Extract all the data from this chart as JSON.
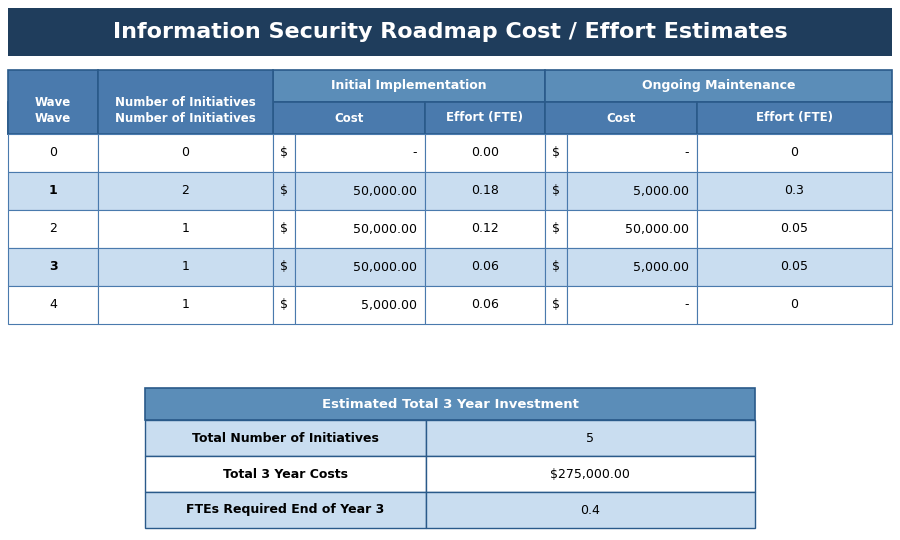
{
  "title": "Information Security Roadmap Cost / Effort Estimates",
  "title_bg": "#1f3d5c",
  "title_color": "#ffffff",
  "subheader_bg": "#5b8db8",
  "col_header_bg": "#4a7aad",
  "col_header_color": "#ffffff",
  "border_color": "#4a7aad",
  "border_dark": "#2a5a8a",
  "row_bg_odd": "#c9ddf0",
  "row_bg_even": "#ffffff",
  "rows": [
    [
      "0",
      "0",
      "$",
      "-",
      "0.00",
      "$",
      "-",
      "0"
    ],
    [
      "1",
      "2",
      "$",
      "50,000.00",
      "0.18",
      "$",
      "5,000.00",
      "0.3"
    ],
    [
      "2",
      "1",
      "$",
      "50,000.00",
      "0.12",
      "$",
      "50,000.00",
      "0.05"
    ],
    [
      "3",
      "1",
      "$",
      "50,000.00",
      "0.06",
      "$",
      "5,000.00",
      "0.05"
    ],
    [
      "4",
      "1",
      "$",
      "5,000.00",
      "0.06",
      "$",
      "-",
      "0"
    ]
  ],
  "bold_wave": [
    false,
    true,
    false,
    true,
    false
  ],
  "summary_title": "Estimated Total 3 Year Investment",
  "summary_rows": [
    [
      "Total Number of Initiatives",
      "5"
    ],
    [
      "Total 3 Year Costs",
      "$275,000.00"
    ],
    [
      "FTEs Required End of Year 3",
      "0.4"
    ]
  ]
}
